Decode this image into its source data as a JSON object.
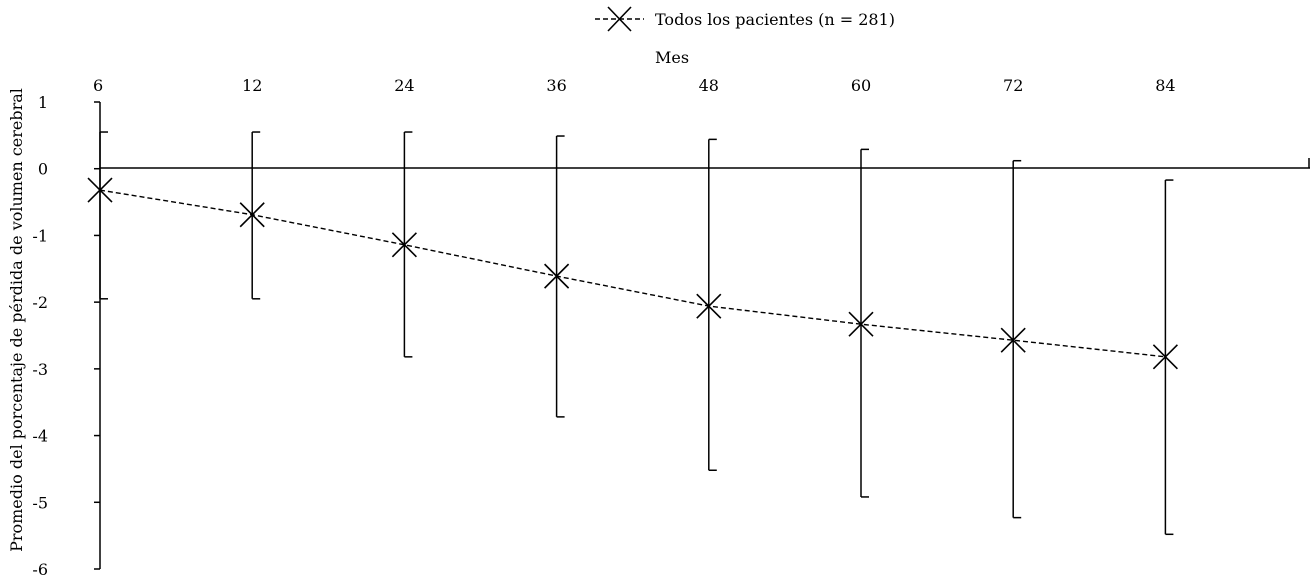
{
  "chart_data": {
    "type": "line",
    "title": "",
    "xlabel": "Mes",
    "ylabel": "Promedio del porcentaje de pérdida de volumen cerebral",
    "x_axis_position": "top",
    "categories": [
      "6",
      "12",
      "24",
      "36",
      "48",
      "60",
      "72",
      "84"
    ],
    "y_ticks": [
      "1",
      "0",
      "-1",
      "-2",
      "-3",
      "-4",
      "-5",
      "-6"
    ],
    "ylim": [
      -6,
      1
    ],
    "grid": false,
    "legend_position": "top-center",
    "series": [
      {
        "name": "Todos los pacientes (n = 281)",
        "marker": "x",
        "line_style": "dashed",
        "color": "#000000",
        "values": [
          -0.32,
          -0.69,
          -1.14,
          -1.61,
          -2.06,
          -2.33,
          -2.57,
          -2.82
        ],
        "error_upper": [
          0.55,
          0.55,
          0.55,
          0.49,
          0.44,
          0.29,
          0.12,
          -0.17
        ],
        "error_lower": [
          -1.95,
          -1.95,
          -2.82,
          -3.72,
          -4.52,
          -4.92,
          -5.23,
          -5.48
        ]
      }
    ]
  }
}
